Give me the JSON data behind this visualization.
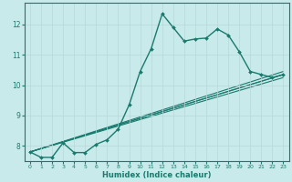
{
  "xlabel": "Humidex (Indice chaleur)",
  "ylabel": "",
  "bg_color": "#c8eaea",
  "line_color": "#1a7a6e",
  "grid_color": "#b8d8d8",
  "xlim": [
    -0.5,
    23.5
  ],
  "ylim": [
    7.5,
    12.7
  ],
  "yticks": [
    8,
    9,
    10,
    11,
    12
  ],
  "xticks": [
    0,
    1,
    2,
    3,
    4,
    5,
    6,
    7,
    8,
    9,
    10,
    11,
    12,
    13,
    14,
    15,
    16,
    17,
    18,
    19,
    20,
    21,
    22,
    23
  ],
  "main_line": {
    "x": [
      0,
      1,
      2,
      3,
      4,
      5,
      6,
      7,
      8,
      9,
      10,
      11,
      12,
      13,
      14,
      15,
      16,
      17,
      18,
      19,
      20,
      21,
      22,
      23
    ],
    "y": [
      7.8,
      7.62,
      7.62,
      8.1,
      7.78,
      7.78,
      8.05,
      8.2,
      8.55,
      9.35,
      10.45,
      11.2,
      12.35,
      11.9,
      11.45,
      11.52,
      11.55,
      11.85,
      11.65,
      11.1,
      10.45,
      10.35,
      10.25,
      10.35
    ]
  },
  "straight_lines": [
    {
      "x": [
        0,
        23
      ],
      "y": [
        7.8,
        10.45
      ]
    },
    {
      "x": [
        0,
        23
      ],
      "y": [
        7.8,
        10.35
      ]
    },
    {
      "x": [
        0,
        23
      ],
      "y": [
        7.8,
        10.25
      ]
    },
    {
      "x": [
        0,
        23
      ],
      "y": [
        7.8,
        10.35
      ]
    }
  ]
}
